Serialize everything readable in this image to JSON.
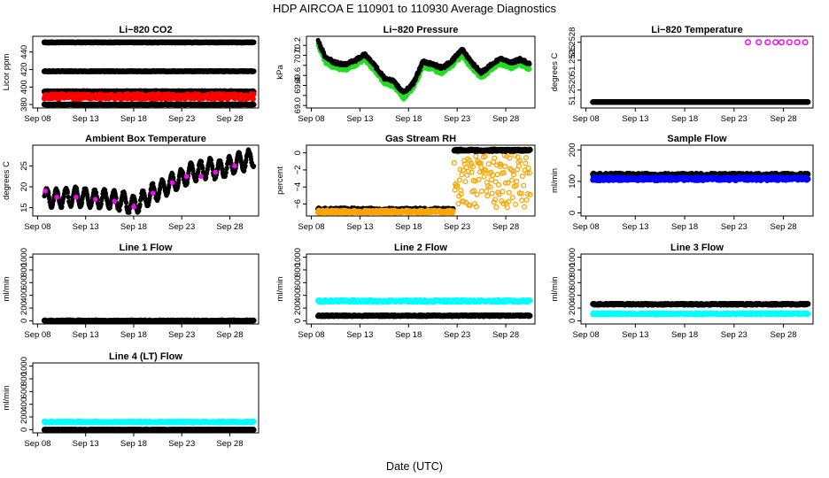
{
  "figure": {
    "title": "HDP    AIRCOA E    110901 to 110930    Average Diagnostics",
    "xlabel": "Date (UTC)",
    "x_ticks": [
      "Sep 08",
      "Sep 13",
      "Sep 18",
      "Sep 23",
      "Sep 28"
    ],
    "x_tick_days": [
      8,
      13,
      18,
      23,
      28
    ],
    "x_range_days": [
      7.5,
      31.0
    ]
  },
  "chart_data": [
    {
      "id": "co2",
      "type": "scatter",
      "title": "Li−820 CO2",
      "ylabel": "Licor ppm",
      "ylim": [
        376,
        458
      ],
      "yticks": [
        380,
        400,
        420,
        440
      ],
      "ytick_labels": [
        "380",
        "400",
        "420",
        "440"
      ],
      "series": [
        {
          "name": "reference high",
          "color": "#000000",
          "level": 451,
          "start_day": 8.7,
          "end_day": 30.5,
          "amp": 0.2
        },
        {
          "name": "reference mid",
          "color": "#000000",
          "level": 418,
          "start_day": 8.7,
          "end_day": 30.5,
          "amp": 0.2
        },
        {
          "name": "reference low",
          "color": "#000000",
          "level": 395,
          "start_day": 8.7,
          "end_day": 30.5,
          "amp": 0.4
        },
        {
          "name": "sample",
          "color": "#ff0000",
          "level": 389,
          "start_day": 8.7,
          "end_day": 30.5,
          "amp": 3.0
        },
        {
          "name": "reference bottom",
          "color": "#000000",
          "level": 380,
          "start_day": 8.7,
          "end_day": 30.5,
          "amp": 0.2
        }
      ]
    },
    {
      "id": "pressure",
      "type": "scatter",
      "title": "Li−820 Pressure",
      "ylabel": "kPa",
      "ylim": [
        68.95,
        70.38
      ],
      "yticks": [
        69.0,
        69.2,
        69.4,
        69.6,
        69.8,
        70.0,
        70.2
      ],
      "ytick_labels": [
        "69.0",
        "",
        "69.4",
        "69.6",
        "",
        "70.0",
        "70.2"
      ],
      "series": [
        {
          "name": "sample",
          "color": "#22dd22",
          "x": [
            8.7,
            9.5,
            10.5,
            11.5,
            12.5,
            13.5,
            14.5,
            15.5,
            16.5,
            17.5,
            18.5,
            19.5,
            20.5,
            21.5,
            22.5,
            23.5,
            24.5,
            25.5,
            26.5,
            27.5,
            28.5,
            29.5,
            30.5
          ],
          "y": [
            70.2,
            69.85,
            69.75,
            69.72,
            69.8,
            69.92,
            69.7,
            69.45,
            69.38,
            69.15,
            69.35,
            69.78,
            69.72,
            69.65,
            69.8,
            70.0,
            69.75,
            69.55,
            69.72,
            69.83,
            69.75,
            69.82,
            69.72
          ]
        },
        {
          "name": "reference",
          "color": "#000000",
          "x": [
            8.7,
            9.5,
            10.5,
            11.5,
            12.5,
            13.5,
            14.5,
            15.5,
            16.5,
            17.5,
            18.5,
            19.5,
            20.5,
            21.5,
            22.5,
            23.5,
            24.5,
            25.5,
            26.5,
            27.5,
            28.5,
            29.5,
            30.5
          ],
          "y": [
            70.28,
            69.95,
            69.85,
            69.82,
            69.9,
            70.02,
            69.8,
            69.55,
            69.48,
            69.25,
            69.45,
            69.88,
            69.82,
            69.75,
            69.9,
            70.12,
            69.85,
            69.65,
            69.82,
            69.93,
            69.85,
            69.92,
            69.82
          ]
        }
      ]
    },
    {
      "id": "licor_temp",
      "type": "scatter",
      "title": "Li−820 Temperature",
      "ylabel": "degrees C",
      "ylim": [
        51.2517,
        51.2529
      ],
      "yticks": [
        51.252,
        51.2525,
        51.2528
      ],
      "ytick_labels": [
        "51.2520",
        "51.2525",
        "51.2528"
      ],
      "series": [
        {
          "name": "sample",
          "color": "#000000",
          "level": 51.2518,
          "start_day": 8.7,
          "end_day": 30.5,
          "amp": 0.0
        },
        {
          "name": "reference",
          "color": "#ff00ff",
          "x": [
            24.4,
            25.5,
            26.4,
            27.2,
            27.8,
            28.6,
            29.4,
            30.2
          ],
          "y": [
            51.2528,
            51.2528,
            51.2528,
            51.2528,
            51.2528,
            51.2528,
            51.2528,
            51.2528
          ]
        }
      ]
    },
    {
      "id": "box_temp",
      "type": "scatter",
      "title": "Ambient Box Temperature",
      "ylabel": "degrees C",
      "ylim": [
        13,
        30
      ],
      "yticks": [
        15,
        20,
        25
      ],
      "ytick_labels": [
        "15",
        "20",
        "25"
      ],
      "series": [
        {
          "name": "box",
          "color": "#000000",
          "x": [
            8.7,
            10,
            12,
            14,
            15,
            16,
            17,
            18,
            19,
            20,
            21,
            22,
            23,
            24,
            25,
            26,
            27,
            28,
            29,
            30,
            30.5
          ],
          "y": [
            17.5,
            17.2,
            17.8,
            17.0,
            17.2,
            16.8,
            16.5,
            15.5,
            17.0,
            18.5,
            19.5,
            21.0,
            22.0,
            23.5,
            24.0,
            24.5,
            24.0,
            25.0,
            26.0,
            26.5,
            27.0
          ],
          "amp": 2.2
        },
        {
          "name": "sensor",
          "color": "#ff00ff",
          "x": [
            8.8,
            10,
            12,
            14,
            16,
            18,
            20,
            22,
            23.5,
            25,
            26.5,
            28.5
          ],
          "y": [
            19.0,
            17.5,
            17.5,
            17.0,
            16.5,
            15.2,
            18.5,
            21.0,
            22.5,
            22.5,
            23.5,
            25.0
          ]
        }
      ]
    },
    {
      "id": "gas_rh",
      "type": "scatter",
      "title": "Gas Stream RH",
      "ylabel": "percent",
      "ylim": [
        -7.4,
        0.9
      ],
      "yticks": [
        -6,
        -4,
        -2,
        0
      ],
      "ytick_labels": [
        "−6",
        "−4",
        "−2",
        "0"
      ],
      "series": [
        {
          "name": "dry stream",
          "color": "#000000",
          "level": -6.7,
          "start_day": 8.7,
          "end_day": 22.6,
          "amp": 0.2
        },
        {
          "name": "ambient",
          "color": "#ffa500",
          "level": -6.9,
          "start_day": 8.7,
          "end_day": 22.6,
          "amp": 0.15
        },
        {
          "name": "scatter",
          "color": "#ffa500",
          "level": -3.0,
          "start_day": 22.7,
          "end_day": 30.5,
          "amp": 3.5
        },
        {
          "name": "top",
          "color": "#000000",
          "level": 0.3,
          "start_day": 22.7,
          "end_day": 30.5,
          "amp": 0.1
        }
      ]
    },
    {
      "id": "sample_flow",
      "type": "scatter",
      "title": "Sample Flow",
      "ylabel": "ml/min",
      "ylim": [
        -10,
        215
      ],
      "yticks": [
        0,
        50,
        100,
        150,
        200
      ],
      "ytick_labels": [
        "0",
        "",
        "100",
        "",
        "200"
      ],
      "series": [
        {
          "name": "flow 1",
          "color": "#000000",
          "level": 120,
          "start_day": 8.7,
          "end_day": 30.5,
          "amp": 5
        },
        {
          "name": "flow 2",
          "color": "#0000ff",
          "level": 108,
          "start_day": 8.7,
          "end_day": 30.5,
          "amp": 5
        }
      ]
    },
    {
      "id": "line1",
      "type": "scatter",
      "title": "Line 1 Flow",
      "ylabel": "ml/min",
      "ylim": [
        -50,
        1050
      ],
      "yticks": [
        0,
        200,
        400,
        600,
        800,
        1000
      ],
      "ytick_labels": [
        "0",
        "200",
        "400",
        "600",
        "800",
        "1000"
      ],
      "series": [
        {
          "name": "flow",
          "color": "#000000",
          "level": 0,
          "start_day": 8.7,
          "end_day": 30.5,
          "amp": 8
        }
      ]
    },
    {
      "id": "line2",
      "type": "scatter",
      "title": "Line 2 Flow",
      "ylabel": "ml/min",
      "ylim": [
        -50,
        1050
      ],
      "yticks": [
        0,
        200,
        400,
        600,
        800,
        1000
      ],
      "ytick_labels": [
        "0",
        "200",
        "400",
        "600",
        "800",
        "1000"
      ],
      "series": [
        {
          "name": "flow A",
          "color": "#00ffff",
          "level": 310,
          "start_day": 8.7,
          "end_day": 30.5,
          "amp": 15
        },
        {
          "name": "flow B",
          "color": "#000000",
          "level": 80,
          "start_day": 8.7,
          "end_day": 30.5,
          "amp": 8
        }
      ]
    },
    {
      "id": "line3",
      "type": "scatter",
      "title": "Line 3 Flow",
      "ylabel": "ml/min",
      "ylim": [
        -50,
        1050
      ],
      "yticks": [
        0,
        200,
        400,
        600,
        800,
        1000
      ],
      "ytick_labels": [
        "0",
        "200",
        "400",
        "600",
        "800",
        "1000"
      ],
      "series": [
        {
          "name": "flow A",
          "color": "#000000",
          "level": 260,
          "start_day": 8.7,
          "end_day": 30.5,
          "amp": 10
        },
        {
          "name": "flow B",
          "color": "#00ffff",
          "level": 110,
          "start_day": 8.7,
          "end_day": 30.5,
          "amp": 12
        }
      ]
    },
    {
      "id": "line4",
      "type": "scatter",
      "title": "Line 4 (LT) Flow",
      "ylabel": "ml/min",
      "ylim": [
        -50,
        1050
      ],
      "yticks": [
        0,
        200,
        400,
        600,
        800,
        1000
      ],
      "ytick_labels": [
        "0",
        "200",
        "400",
        "600",
        "800",
        "1000"
      ],
      "series": [
        {
          "name": "flow A",
          "color": "#00ffff",
          "level": 120,
          "start_day": 8.7,
          "end_day": 30.5,
          "amp": 10
        },
        {
          "name": "flow B",
          "color": "#000000",
          "level": 0,
          "start_day": 8.7,
          "end_day": 30.5,
          "amp": 5
        }
      ]
    }
  ]
}
